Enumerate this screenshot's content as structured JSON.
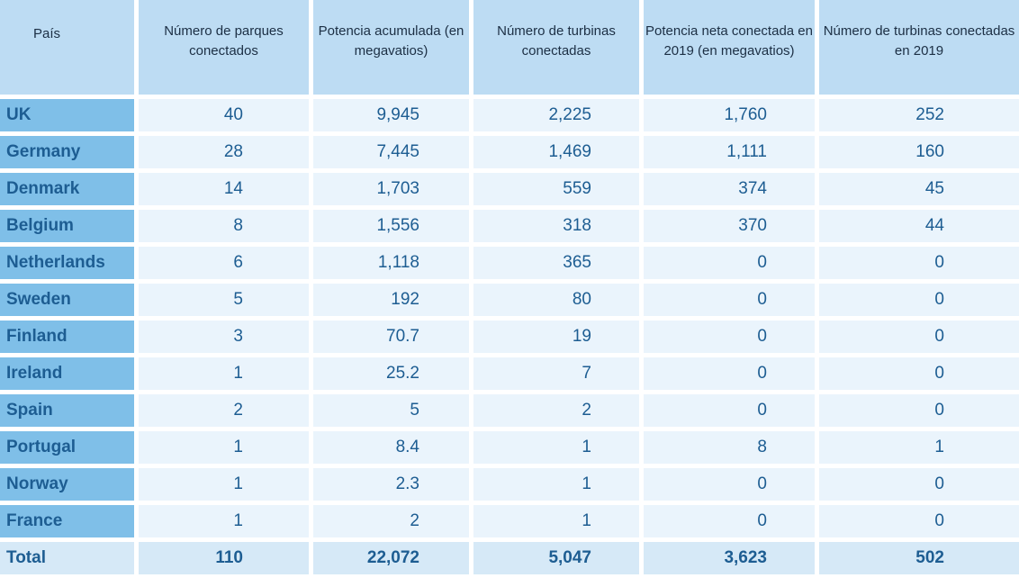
{
  "chart_data": {
    "type": "table",
    "columns": [
      "País",
      "Número de parques conectados",
      "Potencia acumulada (en megavatios)",
      "Número de turbinas conectadas",
      "Potencia neta conectada en 2019 (en megavatios)",
      "Número de turbinas conectadas en 2019"
    ],
    "rows": [
      [
        "UK",
        "40",
        "9,945",
        "2,225",
        "1,760",
        "252"
      ],
      [
        "Germany",
        "28",
        "7,445",
        "1,469",
        "1,111",
        "160"
      ],
      [
        "Denmark",
        "14",
        "1,703",
        "559",
        "374",
        "45"
      ],
      [
        "Belgium",
        "8",
        "1,556",
        "318",
        "370",
        "44"
      ],
      [
        "Netherlands",
        "6",
        "1,118",
        "365",
        "0",
        "0"
      ],
      [
        "Sweden",
        "5",
        "192",
        "80",
        "0",
        "0"
      ],
      [
        "Finland",
        "3",
        "70.7",
        "19",
        "0",
        "0"
      ],
      [
        "Ireland",
        "1",
        "25.2",
        "7",
        "0",
        "0"
      ],
      [
        "Spain",
        "2",
        "5",
        "2",
        "0",
        "0"
      ],
      [
        "Portugal",
        "1",
        "8.4",
        "1",
        "8",
        "1"
      ],
      [
        "Norway",
        "1",
        "2.3",
        "1",
        "0",
        "0"
      ],
      [
        "France",
        "1",
        "2",
        "1",
        "0",
        "0"
      ]
    ],
    "total": [
      "Total",
      "110",
      "22,072",
      "5,047",
      "3,623",
      "502"
    ]
  },
  "colors": {
    "header": "#bddcf3",
    "country": "#7fbfe8",
    "cell": "#eaf4fc",
    "total": "#d6e9f7",
    "text": "#1d5d92"
  }
}
